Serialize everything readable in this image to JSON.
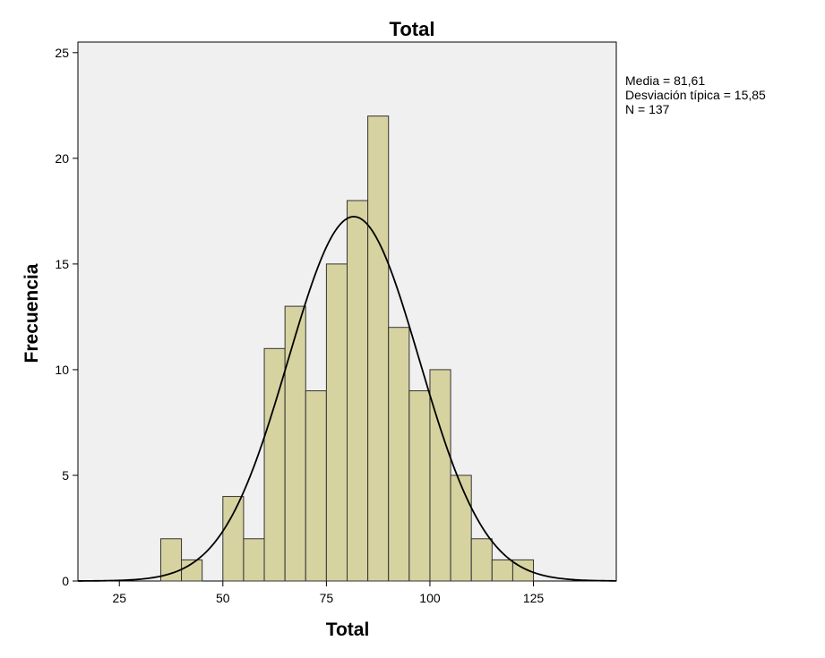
{
  "chart_data": {
    "type": "bar",
    "title": "Total",
    "xlabel": "Total",
    "ylabel": "Frecuencia",
    "xlim": [
      15,
      145
    ],
    "ylim": [
      0,
      25.5
    ],
    "x_ticks": [
      25,
      50,
      75,
      100,
      125
    ],
    "y_ticks": [
      0,
      5,
      10,
      15,
      20,
      25
    ],
    "bin_width": 5,
    "bins": [
      {
        "start": 35,
        "end": 40,
        "count": 2
      },
      {
        "start": 40,
        "end": 45,
        "count": 1
      },
      {
        "start": 45,
        "end": 50,
        "count": 0
      },
      {
        "start": 50,
        "end": 55,
        "count": 4
      },
      {
        "start": 55,
        "end": 60,
        "count": 2
      },
      {
        "start": 60,
        "end": 65,
        "count": 11
      },
      {
        "start": 65,
        "end": 70,
        "count": 13
      },
      {
        "start": 70,
        "end": 75,
        "count": 9
      },
      {
        "start": 75,
        "end": 80,
        "count": 15
      },
      {
        "start": 80,
        "end": 85,
        "count": 18
      },
      {
        "start": 85,
        "end": 90,
        "count": 22
      },
      {
        "start": 90,
        "end": 95,
        "count": 12
      },
      {
        "start": 95,
        "end": 100,
        "count": 9
      },
      {
        "start": 100,
        "end": 105,
        "count": 10
      },
      {
        "start": 105,
        "end": 110,
        "count": 5
      },
      {
        "start": 110,
        "end": 115,
        "count": 2
      },
      {
        "start": 115,
        "end": 120,
        "count": 1
      },
      {
        "start": 120,
        "end": 125,
        "count": 1
      }
    ],
    "normal_curve": {
      "mean": 81.61,
      "sd": 15.85,
      "n": 137
    },
    "stats_lines": [
      "Media = 81,61",
      "Desviación típica = 15,85",
      "N = 137"
    ],
    "legend_position": "top-right",
    "grid": false,
    "colors": {
      "bar_fill": "#d6d3a0",
      "bar_stroke": "#333333",
      "plot_background": "#f0f0f0",
      "curve": "#000000"
    }
  }
}
